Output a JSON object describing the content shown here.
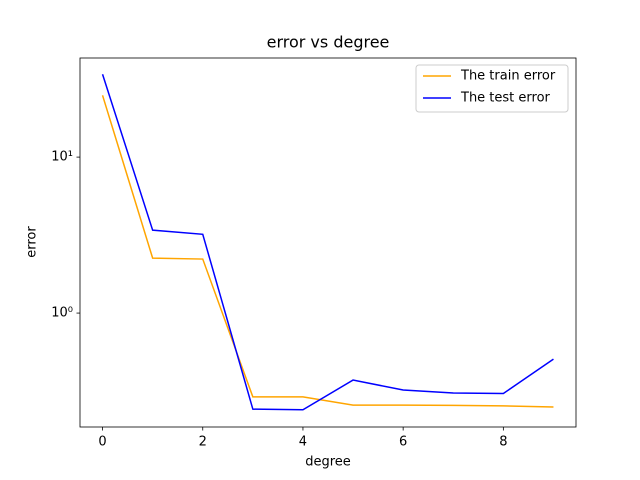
{
  "chart_data": {
    "type": "line",
    "title": "error vs degree",
    "x_label": "degree",
    "y_label": "error",
    "x": [
      0,
      1,
      2,
      3,
      4,
      5,
      6,
      7,
      8,
      9
    ],
    "series": [
      {
        "name": "The train error",
        "color": "orange",
        "values": [
          24.9,
          2.25,
          2.22,
          0.29,
          0.29,
          0.257,
          0.257,
          0.256,
          0.254,
          0.25
        ]
      },
      {
        "name": "The test error",
        "color": "blue",
        "values": [
          34,
          3.4,
          3.2,
          0.242,
          0.24,
          0.372,
          0.321,
          0.307,
          0.305,
          0.507
        ]
      }
    ],
    "xlim": [
      -0.45,
      9.45
    ],
    "xticks": [
      0,
      2,
      4,
      6,
      8
    ],
    "ylim": [
      0.186,
      43.2
    ],
    "yticks": [
      {
        "value": 1,
        "label": "10⁰"
      },
      {
        "value": 10,
        "label": "10¹"
      }
    ],
    "log_y": true,
    "grid": false,
    "legend": "upper right"
  }
}
